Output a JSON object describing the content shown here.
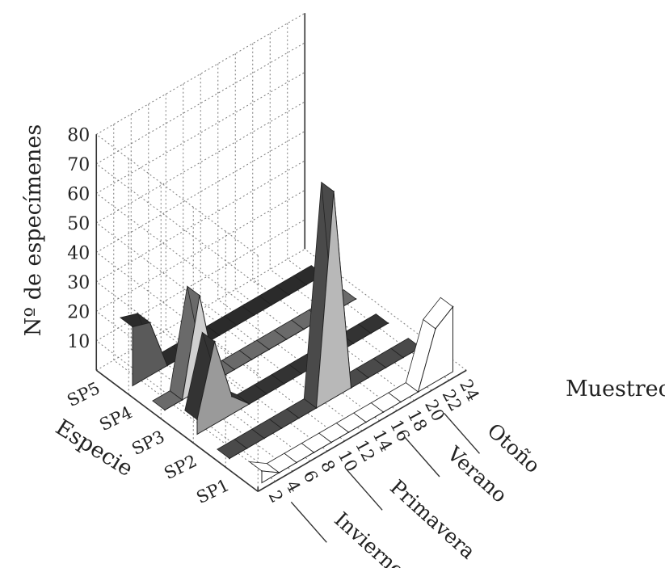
{
  "chart_data": {
    "type": "area",
    "zlabel": "Nº de especímenes",
    "xlabel": "Muestreo",
    "ylabel": "Especie",
    "zlim": [
      0,
      80
    ],
    "z_ticks": [
      10,
      20,
      30,
      40,
      50,
      60,
      70,
      80
    ],
    "x_ticks": [
      2,
      4,
      6,
      8,
      10,
      12,
      14,
      16,
      18,
      20,
      22,
      24
    ],
    "seasons": [
      "Invierno",
      "Primavera",
      "Verano",
      "Otoño"
    ],
    "grid": true,
    "series": [
      {
        "name": "SP1",
        "values": [
          4,
          0,
          0,
          0,
          0,
          0,
          0,
          0,
          0,
          0,
          18,
          22
        ]
      },
      {
        "name": "SP2",
        "values": [
          0,
          0,
          0,
          0,
          0,
          0,
          70,
          0,
          0,
          0,
          0,
          0
        ]
      },
      {
        "name": "SP3",
        "values": [
          5,
          28,
          6,
          0,
          0,
          0,
          0,
          0,
          0,
          0,
          0,
          0
        ]
      },
      {
        "name": "SP4",
        "values": [
          0,
          0,
          32,
          0,
          0,
          0,
          0,
          0,
          0,
          0,
          0,
          0
        ]
      },
      {
        "name": "SP5",
        "values": [
          20,
          18,
          0,
          0,
          0,
          0,
          0,
          0,
          0,
          0,
          0,
          0
        ]
      }
    ]
  }
}
